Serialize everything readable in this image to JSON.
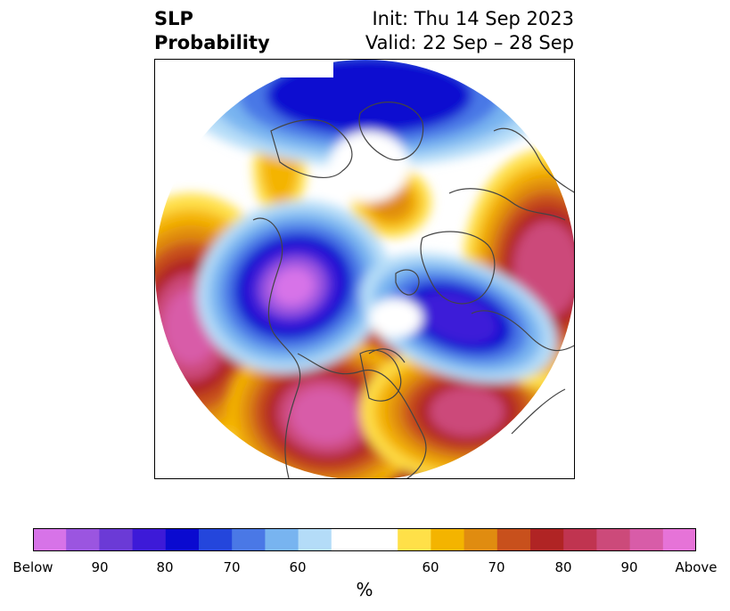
{
  "title": {
    "left_line1": "SLP",
    "left_line2": "Probability",
    "right_line1": "Init: Thu 14 Sep 2023",
    "right_line2": "Valid: 22 Sep – 28 Sep"
  },
  "colorbar": {
    "colors": [
      "#d773e8",
      "#9b55e0",
      "#6b3ad6",
      "#3d1ad8",
      "#0a0ad0",
      "#2446dc",
      "#4a78e6",
      "#78b4f0",
      "#b4dcf8",
      "#ffffff",
      "#ffffff",
      "#ffe048",
      "#f4b400",
      "#e08c10",
      "#c8501c",
      "#b02424",
      "#c03450",
      "#cc4a7a",
      "#d85ca8",
      "#e673d8"
    ],
    "ticks": [
      "Below",
      "90",
      "80",
      "70",
      "60",
      "60",
      "70",
      "80",
      "90",
      "Above"
    ],
    "unit": "%"
  },
  "map": {
    "projection": "north-polar-stereographic",
    "colors": {
      "below_max": "#d773e8",
      "below_90": "#9b55e0",
      "below_80": "#3d1ad8",
      "below_70": "#0a0ad0",
      "below_60": "#4a78e6",
      "below_50": "#78b4f0",
      "near": "#b4dcf8",
      "above_50": "#ffe048",
      "above_60": "#f4b400",
      "above_70": "#e08c10",
      "above_80": "#c8501c",
      "above_90": "#b02424",
      "above_95": "#cc4a7a",
      "above_max": "#d85ca8"
    },
    "coastline_color": "#444444"
  }
}
